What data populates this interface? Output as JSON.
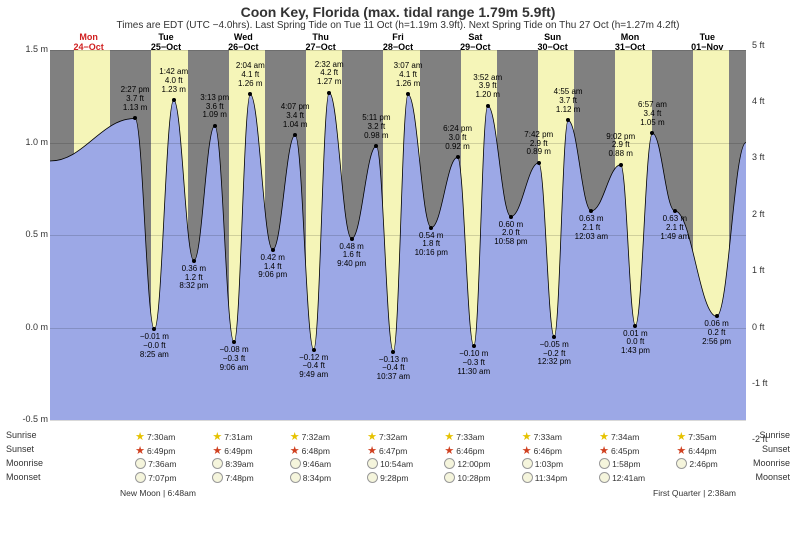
{
  "title": "Coon Key, Florida (max. tidal range 1.79m 5.9ft)",
  "subtitle": "Times are EDT (UTC −4.0hrs). Last Spring Tide on Tue 11 Oct (h=1.19m 3.9ft). Next Spring Tide on Thu 27 Oct (h=1.27m 4.2ft)",
  "yaxis_left": {
    "label_suffix": " m",
    "min": -0.5,
    "max": 1.5,
    "ticks": [
      -0.5,
      0.0,
      0.5,
      1.0,
      1.5
    ]
  },
  "yaxis_right": {
    "label_suffix": " ft",
    "ticks_ft": [
      -2,
      -1,
      0,
      1,
      2,
      3,
      4,
      5
    ]
  },
  "colors": {
    "day_bg": "#f5f5b8",
    "night_bg": "#808080",
    "water": "#9ca8e6",
    "sky": "#b0b0b0",
    "today_header": "#d02020",
    "header": "#000"
  },
  "days": [
    {
      "dow": "Mon",
      "date": "24−Oct",
      "is_today": true
    },
    {
      "dow": "Tue",
      "date": "25−Oct",
      "is_today": false
    },
    {
      "dow": "Wed",
      "date": "26−Oct",
      "is_today": false
    },
    {
      "dow": "Thu",
      "date": "27−Oct",
      "is_today": false
    },
    {
      "dow": "Fri",
      "date": "28−Oct",
      "is_today": false
    },
    {
      "dow": "Sat",
      "date": "29−Oct",
      "is_today": false
    },
    {
      "dow": "Sun",
      "date": "30−Oct",
      "is_today": false
    },
    {
      "dow": "Mon",
      "date": "31−Oct",
      "is_today": false
    },
    {
      "dow": "Tue",
      "date": "01−Nov",
      "is_today": false
    }
  ],
  "day_fraction_start": 0.31,
  "day_fraction_end": 0.78,
  "tide_points": [
    {
      "day": 1.1,
      "h_m": 1.13,
      "time": "2:27 pm",
      "ft": "3.7 ft",
      "m": "1.13 m",
      "pos": "above"
    },
    {
      "day": 1.35,
      "h_m": -0.01,
      "time": "8:25 am",
      "ft": "−0.0 ft",
      "m": "−0.01 m",
      "pos": "below"
    },
    {
      "day": 1.6,
      "h_m": 1.23,
      "time": "1:42 am",
      "ft": "4.0 ft",
      "m": "1.23 m",
      "pos": "above"
    },
    {
      "day": 1.86,
      "h_m": 0.36,
      "time": "8:32 pm",
      "ft": "1.2 ft",
      "m": "0.36 m",
      "pos": "below"
    },
    {
      "day": 2.13,
      "h_m": 1.09,
      "time": "3:13 pm",
      "ft": "3.6 ft",
      "m": "1.09 m",
      "pos": "above"
    },
    {
      "day": 2.38,
      "h_m": -0.08,
      "time": "9:06 am",
      "ft": "−0.3 ft",
      "m": "−0.08 m",
      "pos": "below"
    },
    {
      "day": 2.59,
      "h_m": 1.26,
      "time": "2:04 am",
      "ft": "4.1 ft",
      "m": "1.26 m",
      "pos": "above"
    },
    {
      "day": 2.88,
      "h_m": 0.42,
      "time": "9:06 pm",
      "ft": "1.4 ft",
      "m": "0.42 m",
      "pos": "below"
    },
    {
      "day": 3.17,
      "h_m": 1.04,
      "time": "4:07 pm",
      "ft": "3.4 ft",
      "m": "1.04 m",
      "pos": "above"
    },
    {
      "day": 3.41,
      "h_m": -0.12,
      "time": "9:49 am",
      "ft": "−0.4 ft",
      "m": "−0.12 m",
      "pos": "below"
    },
    {
      "day": 3.61,
      "h_m": 1.27,
      "time": "2:32 am",
      "ft": "4.2 ft",
      "m": "1.27 m",
      "pos": "above"
    },
    {
      "day": 3.9,
      "h_m": 0.48,
      "time": "9:40 pm",
      "ft": "1.6 ft",
      "m": "0.48 m",
      "pos": "below"
    },
    {
      "day": 4.22,
      "h_m": 0.98,
      "time": "5:11 pm",
      "ft": "3.2 ft",
      "m": "0.98 m",
      "pos": "above"
    },
    {
      "day": 4.44,
      "h_m": -0.13,
      "time": "10:37 am",
      "ft": "−0.4 ft",
      "m": "−0.13 m",
      "pos": "below"
    },
    {
      "day": 4.63,
      "h_m": 1.26,
      "time": "3:07 am",
      "ft": "4.1 ft",
      "m": "1.26 m",
      "pos": "above"
    },
    {
      "day": 4.93,
      "h_m": 0.54,
      "time": "10:16 pm",
      "ft": "1.8 ft",
      "m": "0.54 m",
      "pos": "below"
    },
    {
      "day": 5.27,
      "h_m": 0.92,
      "time": "6:24 pm",
      "ft": "3.0 ft",
      "m": "0.92 m",
      "pos": "above"
    },
    {
      "day": 5.48,
      "h_m": -0.1,
      "time": "11:30 am",
      "ft": "−0.3 ft",
      "m": "−0.10 m",
      "pos": "below"
    },
    {
      "day": 5.66,
      "h_m": 1.2,
      "time": "3:52 am",
      "ft": "3.9 ft",
      "m": "1.20 m",
      "pos": "above"
    },
    {
      "day": 5.96,
      "h_m": 0.6,
      "time": "10:58 pm",
      "ft": "2.0 ft",
      "m": "0.60 m",
      "pos": "below"
    },
    {
      "day": 6.32,
      "h_m": 0.89,
      "time": "7:42 pm",
      "ft": "2.9 ft",
      "m": "0.89 m",
      "pos": "above"
    },
    {
      "day": 6.52,
      "h_m": -0.05,
      "time": "12:32 pm",
      "ft": "−0.2 ft",
      "m": "−0.05 m",
      "pos": "below"
    },
    {
      "day": 6.7,
      "h_m": 1.12,
      "time": "4:55 am",
      "ft": "3.7 ft",
      "m": "1.12 m",
      "pos": "above"
    },
    {
      "day": 7.0,
      "h_m": 0.63,
      "time": "12:03 am",
      "ft": "2.1 ft",
      "m": "0.63 m",
      "pos": "below"
    },
    {
      "day": 7.38,
      "h_m": 0.88,
      "time": "9:02 pm",
      "ft": "2.9 ft",
      "m": "0.88 m",
      "pos": "above"
    },
    {
      "day": 7.57,
      "h_m": 0.01,
      "time": "1:43 pm",
      "ft": "0.0 ft",
      "m": "0.01 m",
      "pos": "below"
    },
    {
      "day": 7.79,
      "h_m": 1.05,
      "time": "6:57 am",
      "ft": "3.4 ft",
      "m": "1.05 m",
      "pos": "above"
    },
    {
      "day": 8.08,
      "h_m": 0.63,
      "time": "1:49 am",
      "ft": "2.1 ft",
      "m": "0.63 m",
      "pos": "below"
    },
    {
      "day": 8.62,
      "h_m": 0.06,
      "time": "2:56 pm",
      "ft": "0.2 ft",
      "m": "0.06 m",
      "pos": "below"
    }
  ],
  "sunrise": [
    "7:30am",
    "7:31am",
    "7:32am",
    "7:32am",
    "7:33am",
    "7:33am",
    "7:34am",
    "7:35am"
  ],
  "sunset": [
    "6:49pm",
    "6:49pm",
    "6:48pm",
    "6:47pm",
    "6:46pm",
    "6:46pm",
    "6:45pm",
    "6:44pm"
  ],
  "moonrise": [
    "7:36am",
    "8:39am",
    "9:46am",
    "10:54am",
    "12:00pm",
    "1:03pm",
    "1:58pm",
    "2:46pm"
  ],
  "moonset": [
    "7:07pm",
    "7:48pm",
    "8:34pm",
    "9:28pm",
    "10:28pm",
    "11:34pm",
    "12:41am",
    ""
  ],
  "side_labels": {
    "sunrise": "Sunrise",
    "sunset": "Sunset",
    "moonrise": "Moonrise",
    "moonset": "Moonset"
  },
  "moon_notes": {
    "left": "New Moon | 6:48am",
    "right": "First Quarter | 2:38am"
  }
}
